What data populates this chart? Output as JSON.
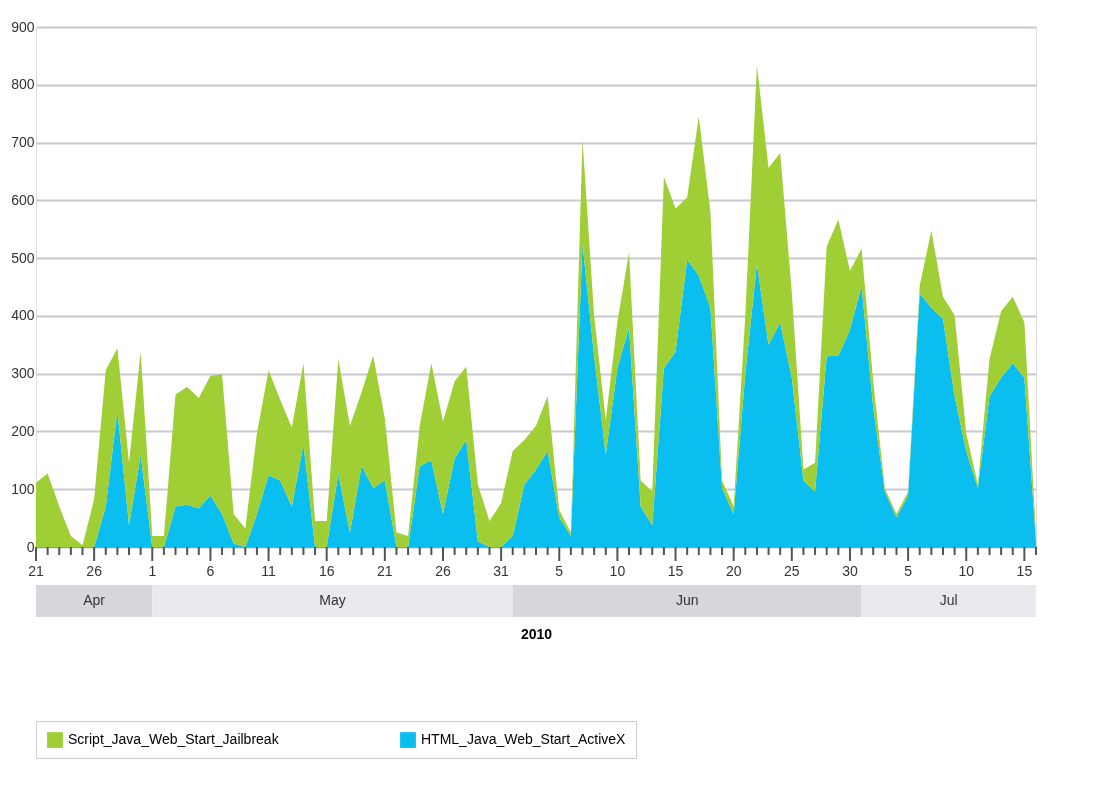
{
  "chart_data": {
    "type": "area",
    "stacked": true,
    "xlabel": "2010",
    "grid": "y",
    "legend": "bottom",
    "ylim": [
      0,
      900
    ],
    "yticks": [
      0,
      100,
      200,
      300,
      400,
      500,
      600,
      700,
      800,
      900
    ],
    "xlim": [
      "2010-04-21",
      "2010-07-16"
    ],
    "xticks": [
      {
        "value": "2010-04-21",
        "label": "21"
      },
      {
        "value": "2010-04-22",
        "label": null
      },
      {
        "value": "2010-04-23",
        "label": null
      },
      {
        "value": "2010-04-24",
        "label": null
      },
      {
        "value": "2010-04-25",
        "label": null
      },
      {
        "value": "2010-04-26",
        "label": "26"
      },
      {
        "value": "2010-04-27",
        "label": null
      },
      {
        "value": "2010-04-28",
        "label": null
      },
      {
        "value": "2010-04-29",
        "label": null
      },
      {
        "value": "2010-04-30",
        "label": null
      },
      {
        "value": "2010-05-01",
        "label": "1"
      },
      {
        "value": "2010-05-02",
        "label": null
      },
      {
        "value": "2010-05-03",
        "label": null
      },
      {
        "value": "2010-05-04",
        "label": null
      },
      {
        "value": "2010-05-05",
        "label": null
      },
      {
        "value": "2010-05-06",
        "label": "6"
      },
      {
        "value": "2010-05-07",
        "label": null
      },
      {
        "value": "2010-05-08",
        "label": null
      },
      {
        "value": "2010-05-09",
        "label": null
      },
      {
        "value": "2010-05-10",
        "label": null
      },
      {
        "value": "2010-05-11",
        "label": "11"
      },
      {
        "value": "2010-05-12",
        "label": null
      },
      {
        "value": "2010-05-13",
        "label": null
      },
      {
        "value": "2010-05-14",
        "label": null
      },
      {
        "value": "2010-05-15",
        "label": null
      },
      {
        "value": "2010-05-16",
        "label": "16"
      },
      {
        "value": "2010-05-17",
        "label": null
      },
      {
        "value": "2010-05-18",
        "label": null
      },
      {
        "value": "2010-05-19",
        "label": null
      },
      {
        "value": "2010-05-20",
        "label": null
      },
      {
        "value": "2010-05-21",
        "label": "21"
      },
      {
        "value": "2010-05-22",
        "label": null
      },
      {
        "value": "2010-05-23",
        "label": null
      },
      {
        "value": "2010-05-24",
        "label": null
      },
      {
        "value": "2010-05-25",
        "label": null
      },
      {
        "value": "2010-05-26",
        "label": "26"
      },
      {
        "value": "2010-05-27",
        "label": null
      },
      {
        "value": "2010-05-28",
        "label": null
      },
      {
        "value": "2010-05-29",
        "label": null
      },
      {
        "value": "2010-05-30",
        "label": null
      },
      {
        "value": "2010-05-31",
        "label": "31"
      },
      {
        "value": "2010-06-01",
        "label": null
      },
      {
        "value": "2010-06-02",
        "label": null
      },
      {
        "value": "2010-06-03",
        "label": null
      },
      {
        "value": "2010-06-04",
        "label": null
      },
      {
        "value": "2010-06-05",
        "label": "5"
      },
      {
        "value": "2010-06-06",
        "label": null
      },
      {
        "value": "2010-06-07",
        "label": null
      },
      {
        "value": "2010-06-08",
        "label": null
      },
      {
        "value": "2010-06-09",
        "label": null
      },
      {
        "value": "2010-06-10",
        "label": "10"
      },
      {
        "value": "2010-06-11",
        "label": null
      },
      {
        "value": "2010-06-12",
        "label": null
      },
      {
        "value": "2010-06-13",
        "label": null
      },
      {
        "value": "2010-06-14",
        "label": null
      },
      {
        "value": "2010-06-15",
        "label": "15"
      },
      {
        "value": "2010-06-16",
        "label": null
      },
      {
        "value": "2010-06-17",
        "label": null
      },
      {
        "value": "2010-06-18",
        "label": null
      },
      {
        "value": "2010-06-19",
        "label": null
      },
      {
        "value": "2010-06-20",
        "label": "20"
      },
      {
        "value": "2010-06-21",
        "label": null
      },
      {
        "value": "2010-06-22",
        "label": null
      },
      {
        "value": "2010-06-23",
        "label": null
      },
      {
        "value": "2010-06-24",
        "label": null
      },
      {
        "value": "2010-06-25",
        "label": "25"
      },
      {
        "value": "2010-06-26",
        "label": null
      },
      {
        "value": "2010-06-27",
        "label": null
      },
      {
        "value": "2010-06-28",
        "label": null
      },
      {
        "value": "2010-06-29",
        "label": null
      },
      {
        "value": "2010-06-30",
        "label": "30"
      },
      {
        "value": "2010-07-01",
        "label": null
      },
      {
        "value": "2010-07-02",
        "label": null
      },
      {
        "value": "2010-07-03",
        "label": null
      },
      {
        "value": "2010-07-04",
        "label": null
      },
      {
        "value": "2010-07-05",
        "label": "5"
      },
      {
        "value": "2010-07-06",
        "label": null
      },
      {
        "value": "2010-07-07",
        "label": null
      },
      {
        "value": "2010-07-08",
        "label": null
      },
      {
        "value": "2010-07-09",
        "label": null
      },
      {
        "value": "2010-07-10",
        "label": "10"
      },
      {
        "value": "2010-07-11",
        "label": null
      },
      {
        "value": "2010-07-12",
        "label": null
      },
      {
        "value": "2010-07-13",
        "label": null
      },
      {
        "value": "2010-07-14",
        "label": null
      },
      {
        "value": "2010-07-15",
        "label": "15"
      },
      {
        "value": "2010-07-16",
        "label": null
      }
    ],
    "annotations": [
      "Apr",
      "May",
      "Jun",
      "Jul"
    ],
    "x": [
      "2010-04-21",
      "2010-04-22",
      "2010-04-23",
      "2010-04-24",
      "2010-04-25",
      "2010-04-26",
      "2010-04-27",
      "2010-04-28",
      "2010-04-29",
      "2010-04-30",
      "2010-05-01",
      "2010-05-02",
      "2010-05-03",
      "2010-05-04",
      "2010-05-05",
      "2010-05-06",
      "2010-05-07",
      "2010-05-08",
      "2010-05-09",
      "2010-05-10",
      "2010-05-11",
      "2010-05-12",
      "2010-05-13",
      "2010-05-14",
      "2010-05-15",
      "2010-05-16",
      "2010-05-17",
      "2010-05-18",
      "2010-05-19",
      "2010-05-20",
      "2010-05-21",
      "2010-05-22",
      "2010-05-23",
      "2010-05-24",
      "2010-05-25",
      "2010-05-26",
      "2010-05-27",
      "2010-05-28",
      "2010-05-29",
      "2010-05-30",
      "2010-05-31",
      "2010-06-01",
      "2010-06-02",
      "2010-06-03",
      "2010-06-04",
      "2010-06-05",
      "2010-06-06",
      "2010-06-07",
      "2010-06-08",
      "2010-06-09",
      "2010-06-10",
      "2010-06-11",
      "2010-06-12",
      "2010-06-13",
      "2010-06-14",
      "2010-06-15",
      "2010-06-16",
      "2010-06-17",
      "2010-06-18",
      "2010-06-19",
      "2010-06-20",
      "2010-06-21",
      "2010-06-22",
      "2010-06-23",
      "2010-06-24",
      "2010-06-25",
      "2010-06-26",
      "2010-06-27",
      "2010-06-28",
      "2010-06-29",
      "2010-06-30",
      "2010-07-01",
      "2010-07-02",
      "2010-07-03",
      "2010-07-04",
      "2010-07-05",
      "2010-07-06",
      "2010-07-07",
      "2010-07-08",
      "2010-07-09",
      "2010-07-10",
      "2010-07-11",
      "2010-07-12",
      "2010-07-13",
      "2010-07-14",
      "2010-07-15",
      "2010-07-16"
    ],
    "series": [
      {
        "name": "HTML_Java_Web_Start_ActiveX",
        "color": "#0abff0",
        "values": [
          0,
          0,
          0,
          0,
          0,
          0,
          70,
          236,
          38,
          159,
          0,
          0,
          70,
          73,
          67,
          89,
          57,
          6,
          0,
          57,
          124,
          115,
          70,
          178,
          0,
          0,
          127,
          25,
          140,
          102,
          115,
          0,
          0,
          140,
          150,
          57,
          153,
          185,
          10,
          0,
          0,
          19,
          108,
          134,
          166,
          51,
          19,
          525,
          330,
          160,
          310,
          380,
          70,
          38,
          310,
          338,
          497,
          470,
          414,
          102,
          57,
          300,
          490,
          350,
          389,
          293,
          115,
          96,
          330,
          331,
          376,
          452,
          242,
          96,
          51,
          89,
          439,
          414,
          395,
          261,
          166,
          102,
          261,
          293,
          318,
          293,
          10
        ]
      },
      {
        "name": "Script_Java_Web_Start_Jailbreak",
        "color": "#9fce35",
        "values": [
          111,
          127,
          70,
          19,
          3,
          83,
          236,
          108,
          108,
          179,
          19,
          19,
          194,
          204,
          191,
          207,
          242,
          51,
          32,
          140,
          182,
          140,
          137,
          140,
          45,
          45,
          198,
          185,
          128,
          229,
          108,
          25,
          19,
          70,
          168,
          160,
          134,
          127,
          98,
          45,
          76,
          147,
          77,
          76,
          95,
          13,
          6,
          180,
          70,
          60,
          80,
          130,
          45,
          58,
          330,
          248,
          108,
          275,
          166,
          13,
          13,
          100,
          344,
          306,
          293,
          147,
          19,
          50,
          190,
          236,
          102,
          64,
          45,
          6,
          6,
          7,
          13,
          134,
          38,
          140,
          31,
          6,
          64,
          115,
          115,
          96,
          10
        ]
      }
    ]
  }
}
